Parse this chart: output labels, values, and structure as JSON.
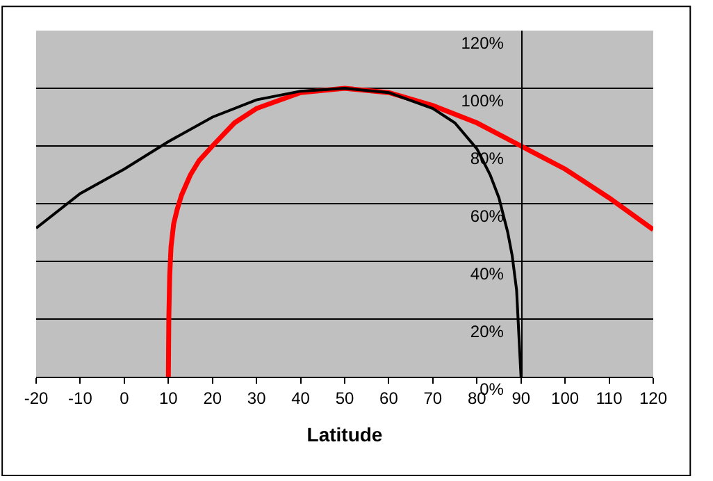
{
  "chart_data": {
    "type": "line",
    "xlabel": "Latitude",
    "xlim": [
      -20,
      120
    ],
    "ylim": [
      0,
      1.2
    ],
    "xticks": [
      -20,
      -10,
      0,
      10,
      20,
      30,
      40,
      50,
      60,
      70,
      80,
      90,
      100,
      110,
      120
    ],
    "yticks": [
      {
        "value": 0,
        "label": "0%"
      },
      {
        "value": 0.2,
        "label": "20%"
      },
      {
        "value": 0.4,
        "label": "40%"
      },
      {
        "value": 0.6,
        "label": "60%"
      },
      {
        "value": 0.8,
        "label": "80%"
      },
      {
        "value": 1.0,
        "label": "100%"
      },
      {
        "value": 1.2,
        "label": "120%"
      }
    ],
    "grid": "y",
    "marker": "none",
    "line_style": "solid",
    "series": [
      {
        "color": "#000000",
        "x": [
          -20,
          -10,
          0,
          10,
          20,
          30,
          40,
          50,
          60,
          70,
          75,
          80,
          83,
          85,
          87,
          88,
          89,
          89.5,
          90
        ],
        "values": [
          0.515,
          0.635,
          0.72,
          0.815,
          0.9,
          0.96,
          0.99,
          1.0,
          0.985,
          0.93,
          0.88,
          0.79,
          0.7,
          0.62,
          0.5,
          0.42,
          0.3,
          0.15,
          0.0
        ]
      },
      {
        "color": "#ff0000",
        "x": [
          10,
          10.1,
          10.3,
          10.6,
          11.2,
          12,
          13,
          15,
          17,
          20,
          25,
          30,
          40,
          50,
          60,
          70,
          80,
          90,
          100,
          110,
          120
        ],
        "values": [
          0.0,
          0.2,
          0.35,
          0.45,
          0.53,
          0.58,
          0.63,
          0.7,
          0.75,
          0.8,
          0.88,
          0.93,
          0.985,
          1.0,
          0.985,
          0.94,
          0.88,
          0.8,
          0.72,
          0.62,
          0.51
        ]
      }
    ]
  }
}
